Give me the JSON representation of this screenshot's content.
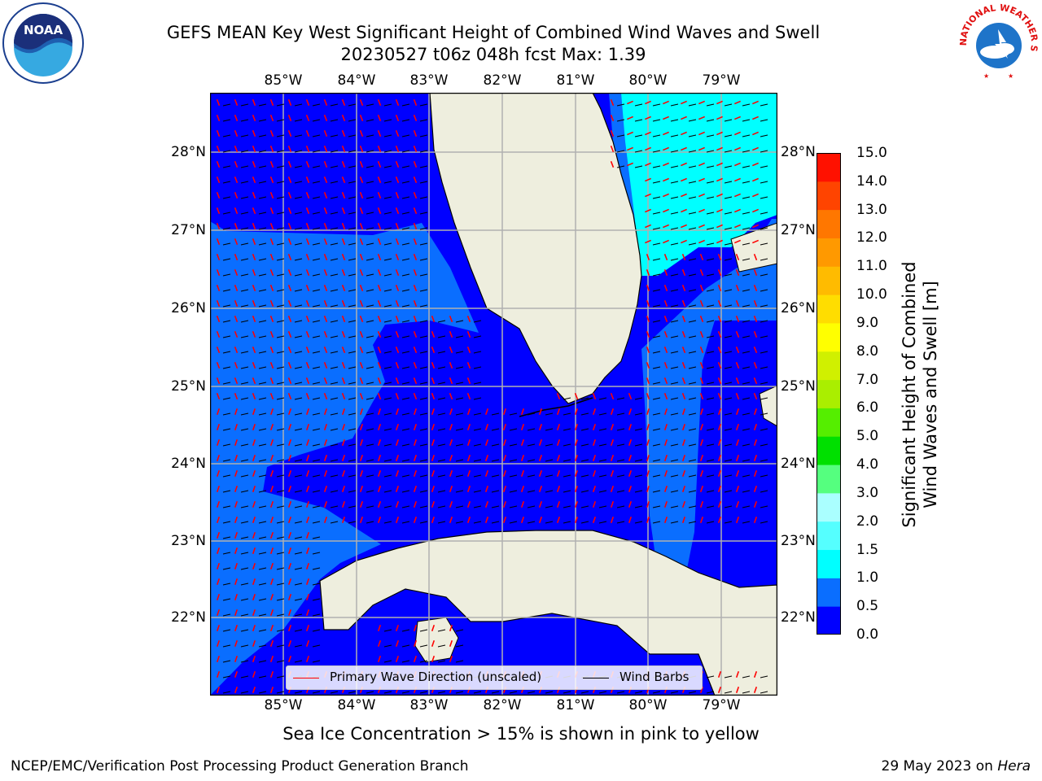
{
  "title": {
    "line1": "GEFS MEAN Key West Significant Height of Combined Wind Waves and Swell",
    "line2": "20230527 t06z 048h fcst   Max: 1.39"
  },
  "logos": {
    "left": {
      "text": "NOAA",
      "ring_text": "NATIONAL OCEANIC AND ATMOSPHERIC ADMINISTRATION · U.S. DEPARTMENT OF COMMERCE"
    },
    "right": {
      "ring_text": "NATIONAL WEATHER SERVICE"
    }
  },
  "map": {
    "lon_labels": [
      "85°W",
      "84°W",
      "83°W",
      "82°W",
      "81°W",
      "80°W",
      "79°W"
    ],
    "lat_labels": [
      "28°N",
      "27°N",
      "26°N",
      "25°N",
      "24°N",
      "23°N",
      "22°N"
    ],
    "grid": true,
    "colors": {
      "land": "#eeeede",
      "coast": "#000000",
      "wave_arrow": "#ff0000",
      "wind_barb": "#000000",
      "grid": "#b0b0b0"
    }
  },
  "legend": {
    "wave": "Primary Wave Direction (unscaled)",
    "wind": "Wind Barbs"
  },
  "colorbar": {
    "label_line1": "Significant Height of Combined",
    "label_line2": "Wind Waves and Swell [m]",
    "ticks": [
      "15.0",
      "14.0",
      "13.0",
      "12.0",
      "11.0",
      "10.0",
      "9.0",
      "8.0",
      "7.0",
      "6.0",
      "5.0",
      "4.0",
      "3.0",
      "2.0",
      "1.5",
      "1.0",
      "0.5",
      "0.0"
    ],
    "colors": [
      "#0000ff",
      "#0a6eff",
      "#00ffff",
      "#55ffff",
      "#aaffff",
      "#55ff7f",
      "#00e000",
      "#55ee00",
      "#aaee00",
      "#d0f000",
      "#ffff00",
      "#ffdd00",
      "#ffbb00",
      "#ff9900",
      "#ff7700",
      "#ff4400",
      "#ff1100"
    ]
  },
  "note": "Sea Ice Concentration > 15% is shown in pink to yellow",
  "footer": {
    "left": "NCEP/EMC/Verification Post Processing Product Generation Branch",
    "right_date": "29 May 2023 on ",
    "right_host": "Hera"
  }
}
